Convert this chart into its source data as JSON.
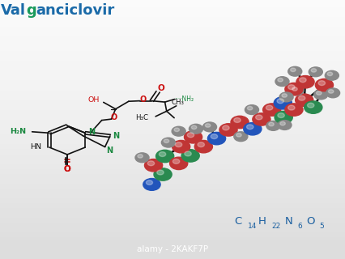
{
  "title_val": "Val",
  "title_g": "g",
  "title_rest": "anciclovir",
  "title_blue": "#1a6aa8",
  "title_green": "#1a9a5c",
  "formula_color": "#1a5fa0",
  "watermark_text": "alamy - 2KAKF7P",
  "watermark_bg": "#111111",
  "watermark_fg": "#ffffff",
  "bg_top": "#f5f5f5",
  "bg_bottom": "#cccccc",
  "struct_black": "#111111",
  "struct_green": "#1a8840",
  "struct_red": "#cc1111",
  "atom_red": "#c03535",
  "atom_green": "#2a8a50",
  "atom_blue": "#2255bb",
  "atom_gray": "#888888",
  "bond_color": "#111111",
  "xlim": [
    0,
    10
  ],
  "ylim": [
    0,
    10
  ]
}
